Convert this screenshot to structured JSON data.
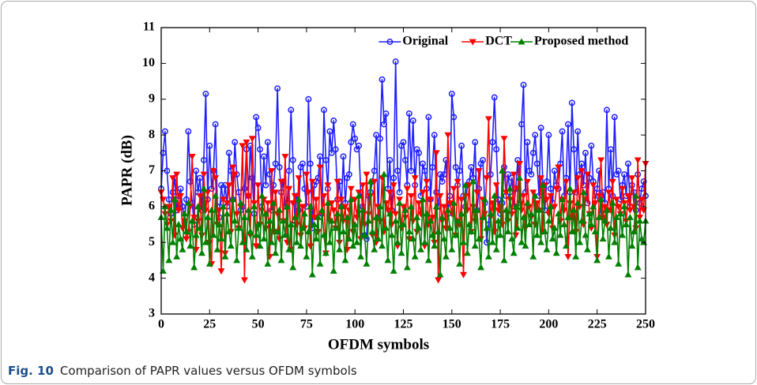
{
  "chart_data": {
    "type": "line",
    "xlabel": "OFDM symbols",
    "ylabel": "PAPR (dB)",
    "caption": {
      "label": "Fig. 10",
      "text": "Comparison of PAPR values versus OFDM symbols"
    },
    "xlim": [
      0,
      250
    ],
    "xticks": [
      0,
      25,
      50,
      75,
      100,
      125,
      150,
      175,
      200,
      225,
      250
    ],
    "ylim": [
      3,
      11
    ],
    "yticks": [
      3,
      4,
      5,
      6,
      7,
      8,
      9,
      10,
      11
    ],
    "legend": "upper right",
    "x": [
      0,
      1,
      2,
      3,
      4,
      5,
      6,
      7,
      8,
      9,
      10,
      11,
      12,
      13,
      14,
      15,
      16,
      17,
      18,
      19,
      20,
      21,
      22,
      23,
      24,
      25,
      26,
      27,
      28,
      29,
      30,
      31,
      32,
      33,
      34,
      35,
      36,
      37,
      38,
      39,
      40,
      41,
      42,
      43,
      44,
      45,
      46,
      47,
      48,
      49,
      50,
      51,
      52,
      53,
      54,
      55,
      56,
      57,
      58,
      59,
      60,
      61,
      62,
      63,
      64,
      65,
      66,
      67,
      68,
      69,
      70,
      71,
      72,
      73,
      74,
      75,
      76,
      77,
      78,
      79,
      80,
      81,
      82,
      83,
      84,
      85,
      86,
      87,
      88,
      89,
      90,
      91,
      92,
      93,
      94,
      95,
      96,
      97,
      98,
      99,
      100,
      101,
      102,
      103,
      104,
      105,
      106,
      107,
      108,
      109,
      110,
      111,
      112,
      113,
      114,
      115,
      116,
      117,
      118,
      119,
      120,
      121,
      122,
      123,
      124,
      125,
      126,
      127,
      128,
      129,
      130,
      131,
      132,
      133,
      134,
      135,
      136,
      137,
      138,
      139,
      140,
      141,
      142,
      143,
      144,
      145,
      146,
      147,
      148,
      149,
      150,
      151,
      152,
      153,
      154,
      155,
      156,
      157,
      158,
      159,
      160,
      161,
      162,
      163,
      164,
      165,
      166,
      167,
      168,
      169,
      170,
      171,
      172,
      173,
      174,
      175,
      176,
      177,
      178,
      179,
      180,
      181,
      182,
      183,
      184,
      185,
      186,
      187,
      188,
      189,
      190,
      191,
      192,
      193,
      194,
      195,
      196,
      197,
      198,
      199,
      200,
      201,
      202,
      203,
      204,
      205,
      206,
      207,
      208,
      209,
      210,
      211,
      212,
      213,
      214,
      215,
      216,
      217,
      218,
      219,
      220,
      221,
      222,
      223,
      224,
      225,
      226,
      227,
      228,
      229,
      230,
      231,
      232,
      233,
      234,
      235,
      236,
      237,
      238,
      239,
      240,
      241,
      242,
      243,
      244,
      245,
      246,
      247,
      248,
      249,
      250
    ],
    "series": [
      {
        "name": "Original",
        "color": "#1f1fff",
        "marker": "o",
        "values": [
          6.5,
          7.5,
          8.1,
          7.0,
          6.2,
          5.8,
          6.4,
          6.8,
          5.9,
          6.3,
          6.5,
          6.0,
          5.6,
          6.2,
          8.1,
          6.7,
          6.1,
          5.5,
          7.0,
          6.4,
          6.8,
          5.9,
          7.3,
          9.15,
          6.2,
          7.7,
          6.5,
          7.0,
          8.3,
          6.0,
          5.7,
          6.6,
          6.1,
          6.6,
          6.0,
          7.5,
          7.0,
          6.2,
          7.8,
          6.9,
          6.4,
          5.9,
          6.0,
          6.5,
          7.6,
          6.3,
          7.7,
          6.8,
          5.8,
          8.5,
          8.2,
          7.6,
          6.0,
          7.4,
          6.6,
          7.8,
          6.9,
          5.9,
          6.6,
          7.2,
          9.3,
          7.1,
          6.4,
          6.7,
          6.0,
          6.1,
          7.0,
          8.7,
          7.3,
          5.6,
          6.3,
          5.9,
          7.1,
          7.2,
          6.5,
          6.0,
          9.0,
          7.2,
          5.4,
          6.6,
          6.7,
          6.8,
          7.4,
          5.8,
          8.7,
          7.3,
          6.5,
          8.1,
          7.5,
          8.4,
          7.6,
          6.2,
          6.7,
          6.0,
          7.4,
          6.1,
          6.8,
          6.9,
          7.8,
          8.3,
          7.9,
          7.6,
          7.7,
          6.4,
          6.0,
          5.2,
          5.1,
          6.3,
          6.4,
          6.7,
          7.0,
          8.0,
          5.7,
          7.9,
          9.55,
          8.3,
          8.6,
          6.5,
          7.3,
          5.9,
          6.8,
          10.05,
          7.0,
          6.4,
          7.7,
          7.8,
          7.3,
          6.6,
          8.6,
          7.0,
          8.4,
          6.6,
          7.6,
          7.5,
          6.3,
          7.2,
          7.0,
          6.5,
          8.5,
          6.2,
          7.1,
          8.0,
          6.4,
          6.0,
          6.9,
          6.7,
          6.9,
          7.3,
          5.8,
          6.3,
          9.15,
          8.5,
          7.1,
          6.6,
          7.0,
          7.7,
          6.3,
          6.0,
          6.6,
          6.7,
          7.1,
          6.8,
          7.8,
          5.9,
          6.5,
          7.2,
          7.3,
          6.1,
          5.0,
          5.5,
          6.9,
          7.8,
          9.05,
          7.6,
          6.2,
          5.8,
          6.1,
          7.1,
          6.3,
          6.9,
          6.4,
          6.8,
          6.0,
          6.5,
          7.3,
          6.1,
          8.3,
          9.4,
          6.4,
          7.8,
          7.0,
          6.9,
          7.5,
          8.0,
          7.2,
          6.3,
          8.2,
          6.6,
          5.9,
          6.7,
          8.0,
          6.5,
          6.1,
          7.0,
          6.6,
          6.5,
          7.2,
          8.1,
          6.3,
          6.8,
          8.3,
          6.4,
          8.9,
          7.6,
          6.4,
          8.1,
          6.9,
          7.2,
          6.6,
          7.5,
          6.1,
          6.8,
          7.7,
          6.7,
          6.2,
          6.5,
          7.0,
          5.8,
          6.4,
          6.1,
          8.7,
          6.5,
          7.6,
          6.3,
          8.5,
          6.9,
          7.0,
          6.2,
          6.6,
          6.9,
          6.3,
          7.2,
          6.0,
          6.6,
          6.4,
          5.9,
          6.9,
          6.1,
          6.5,
          6.7,
          6.3
        ]
      },
      {
        "name": "DCT",
        "color": "#ff0000",
        "marker": "v",
        "values": [
          6.4,
          6.2,
          5.8,
          5.5,
          6.0,
          5.6,
          6.8,
          5.2,
          6.9,
          5.9,
          6.3,
          5.4,
          5.6,
          5.1,
          5.3,
          6.0,
          7.4,
          5.7,
          4.8,
          5.6,
          6.3,
          5.2,
          6.9,
          5.9,
          6.4,
          5.0,
          4.4,
          7.0,
          6.8,
          5.5,
          5.9,
          4.2,
          6.2,
          4.7,
          6.1,
          6.6,
          5.3,
          7.1,
          6.9,
          5.8,
          5.4,
          6.0,
          7.7,
          3.95,
          7.8,
          6.3,
          5.2,
          7.9,
          6.1,
          4.9,
          6.6,
          5.5,
          5.9,
          6.2,
          5.4,
          6.1,
          4.6,
          7.0,
          5.3,
          6.4,
          5.8,
          5.1,
          6.7,
          5.6,
          7.4,
          5.0,
          6.5,
          4.8,
          6.1,
          6.3,
          5.5,
          6.8,
          5.2,
          6.0,
          5.4,
          6.9,
          6.4,
          4.9,
          6.7,
          5.7,
          6.2,
          5.3,
          7.1,
          5.8,
          6.3,
          4.7,
          6.6,
          5.6,
          6.1,
          5.9,
          5.4,
          6.7,
          5.0,
          6.2,
          5.6,
          6.0,
          4.8,
          5.9,
          6.5,
          5.3,
          6.2,
          5.7,
          6.4,
          5.1,
          6.6,
          5.5,
          6.9,
          5.8,
          6.3,
          5.2,
          6.7,
          5.0,
          6.0,
          5.6,
          6.8,
          5.3,
          6.1,
          5.9,
          6.4,
          5.5,
          6.6,
          5.8,
          4.9,
          6.2,
          5.4,
          6.0,
          5.7,
          6.5,
          5.1,
          6.3,
          5.6,
          6.8,
          5.3,
          6.1,
          5.8,
          6.4,
          4.9,
          6.7,
          5.5,
          6.2,
          5.7,
          5.0,
          7.5,
          3.95,
          6.3,
          5.6,
          6.0,
          5.4,
          8.0,
          6.1,
          5.8,
          6.5,
          5.2,
          6.7,
          5.5,
          6.2,
          4.1,
          6.3,
          5.9,
          6.6,
          5.3,
          6.0,
          5.6,
          6.4,
          7.0,
          5.1,
          6.2,
          5.8,
          6.8,
          8.45,
          5.7,
          6.1,
          5.3,
          6.6,
          5.9,
          6.0,
          5.5,
          7.9,
          6.4,
          5.6,
          6.2,
          5.8,
          6.9,
          5.2,
          6.5,
          7.2,
          5.9,
          6.3,
          5.4,
          6.7,
          6.0,
          5.7,
          6.4,
          5.5,
          6.1,
          5.9,
          6.8,
          5.3,
          6.6,
          6.2,
          5.8,
          6.3,
          5.4,
          6.0,
          6.5,
          7.1,
          5.6,
          6.2,
          5.9,
          6.7,
          4.6,
          6.1,
          5.7,
          6.4,
          5.3,
          6.8,
          6.0,
          7.0,
          5.5,
          6.2,
          6.9,
          5.8,
          5.4,
          6.6,
          6.1,
          4.6,
          6.3,
          7.3,
          5.7,
          6.0,
          5.5,
          6.4,
          5.9,
          6.7,
          5.2,
          6.2,
          6.0,
          5.8,
          6.5,
          6.1,
          5.6,
          6.3,
          5.9,
          6.8,
          6.0,
          5.4,
          7.3,
          5.7,
          6.2,
          5.9,
          7.2
        ]
      },
      {
        "name": "Proposed method",
        "color": "#008000",
        "marker": "^",
        "values": [
          5.7,
          4.2,
          6.0,
          5.4,
          4.5,
          5.9,
          5.0,
          6.2,
          4.6,
          5.5,
          5.1,
          4.8,
          5.8,
          5.3,
          6.1,
          4.9,
          5.6,
          4.3,
          5.2,
          6.0,
          5.4,
          4.7,
          6.5,
          5.0,
          5.7,
          4.4,
          5.9,
          5.2,
          6.3,
          4.8,
          5.5,
          5.1,
          6.0,
          4.6,
          5.8,
          5.3,
          4.9,
          6.2,
          5.6,
          4.5,
          5.4,
          6.1,
          5.0,
          5.7,
          4.8,
          5.9,
          5.3,
          4.6,
          6.0,
          5.2,
          5.5,
          4.9,
          6.3,
          5.1,
          5.8,
          4.4,
          5.6,
          5.0,
          6.1,
          4.7,
          5.3,
          5.9,
          4.5,
          5.6,
          5.2,
          6.0,
          4.8,
          5.5,
          4.3,
          5.7,
          5.0,
          6.2,
          4.9,
          5.4,
          5.8,
          4.6,
          5.3,
          6.0,
          4.1,
          5.5,
          5.1,
          5.7,
          4.4,
          5.9,
          5.2,
          4.7,
          6.1,
          5.0,
          5.6,
          4.2,
          5.4,
          5.8,
          4.8,
          6.0,
          5.3,
          4.5,
          5.7,
          5.1,
          6.2,
          4.9,
          5.5,
          5.0,
          6.3,
          4.6,
          5.9,
          5.2,
          4.4,
          5.6,
          6.7,
          5.3,
          4.8,
          5.7,
          5.1,
          6.0,
          4.9,
          6.9,
          5.4,
          4.5,
          5.8,
          5.2,
          4.2,
          5.6,
          5.0,
          6.1,
          4.7,
          5.5,
          5.9,
          4.3,
          5.3,
          6.0,
          5.1,
          4.6,
          5.7,
          5.4,
          4.8,
          6.2,
          5.0,
          5.8,
          4.5,
          5.6,
          5.2,
          4.9,
          6.0,
          5.3,
          4.1,
          5.7,
          5.1,
          4.6,
          5.9,
          5.4,
          4.8,
          6.1,
          5.2,
          5.6,
          4.4,
          5.8,
          5.0,
          6.6,
          4.7,
          5.5,
          5.3,
          6.7,
          4.9,
          5.9,
          5.1,
          4.3,
          5.7,
          6.2,
          5.4,
          4.6,
          5.8,
          5.0,
          6.3,
          4.8,
          5.6,
          5.2,
          7.0,
          4.5,
          5.9,
          5.3,
          6.5,
          5.1,
          4.7,
          6.0,
          5.4,
          6.8,
          5.0,
          5.7,
          4.9,
          6.1,
          5.5,
          5.8,
          4.6,
          6.3,
          5.2,
          5.9,
          5.0,
          6.6,
          5.3,
          4.8,
          5.6,
          6.0,
          5.1,
          5.4,
          4.7,
          5.8,
          5.2,
          6.2,
          5.5,
          4.9,
          5.7,
          6.5,
          5.3,
          5.9,
          4.6,
          6.1,
          5.0,
          5.6,
          6.4,
          5.2,
          4.8,
          5.8,
          5.5,
          6.0,
          5.3,
          4.5,
          5.7,
          6.2,
          5.1,
          5.6,
          5.9,
          4.6,
          5.4,
          6.1,
          5.0,
          5.7,
          4.4,
          5.8,
          5.2,
          6.0,
          5.5,
          4.1,
          5.7,
          4.9,
          5.3,
          6.3,
          4.3,
          5.6,
          5.1,
          5.0,
          5.6
        ]
      }
    ]
  }
}
